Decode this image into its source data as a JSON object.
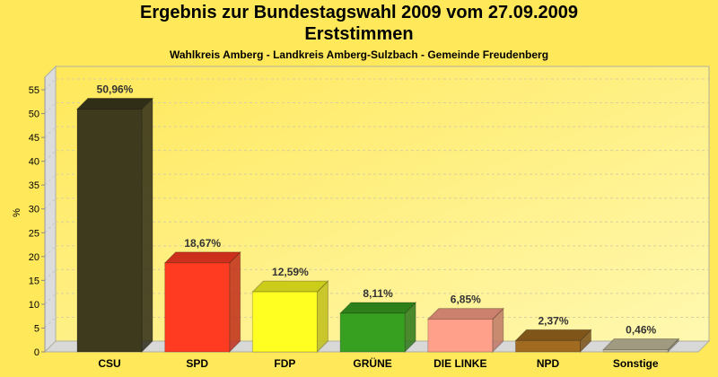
{
  "chart_data": {
    "type": "bar",
    "title": "Ergebnis zur Bundestagswahl 2009 vom 27.09.2009",
    "title_line2": "Erststimmen",
    "subtitle": "Wahlkreis Amberg - Landkreis Amberg-Sulzbach - Gemeinde Freudenberg",
    "xlabel": "",
    "ylabel": "%",
    "ylim": [
      0,
      55
    ],
    "yticks": [
      0,
      5,
      10,
      15,
      20,
      25,
      30,
      35,
      40,
      45,
      50,
      55
    ],
    "grid": true,
    "categories": [
      "CSU",
      "SPD",
      "FDP",
      "GRÜNE",
      "DIE LINKE",
      "NPD",
      "Sonstige"
    ],
    "values": [
      50.96,
      18.67,
      12.59,
      8.11,
      6.85,
      2.37,
      0.46
    ],
    "value_labels": [
      "50,96%",
      "18,67%",
      "12,59%",
      "8,11%",
      "6,85%",
      "2,37%",
      "0,46%"
    ],
    "colors": [
      "#3d3a1e",
      "#ff3b22",
      "#ffff22",
      "#38a021",
      "#ffa08a",
      "#a06a20",
      "#c8c0a0"
    ]
  }
}
